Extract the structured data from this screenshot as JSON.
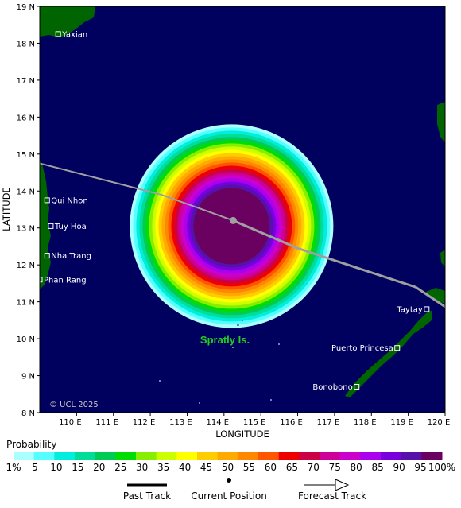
{
  "map": {
    "x_axis_label": "LONGITUDE",
    "y_axis_label": "LATITUDE",
    "lon_ticks": [
      "110 E",
      "111 E",
      "112 E",
      "113 E",
      "114 E",
      "115 E",
      "116 E",
      "117 E",
      "118 E",
      "119 E",
      "120 E"
    ],
    "lat_ticks": [
      "19 N",
      "18 N",
      "17 N",
      "16 N",
      "15 N",
      "14 N",
      "13 N",
      "12 N",
      "11 N",
      "10 N",
      "9 N",
      "8 N"
    ],
    "lon_range": [
      109,
      120
    ],
    "lat_range": [
      8,
      19
    ],
    "copyright": "© UCL 2025",
    "region_label": "Spratly Is.",
    "ocean_color": "#00005e",
    "land_color": "#006400",
    "track_color": "#a0a0a0",
    "places": [
      {
        "name": "Yaxian",
        "lon": 109.5,
        "lat": 18.25
      },
      {
        "name": "Qui Nhon",
        "lon": 109.2,
        "lat": 13.75
      },
      {
        "name": "Tuy Hoa",
        "lon": 109.3,
        "lat": 13.05
      },
      {
        "name": "Nha Trang",
        "lon": 109.2,
        "lat": 12.25
      },
      {
        "name": "Phan Rang",
        "lon": 109.0,
        "lat": 11.6
      },
      {
        "name": "Taytay",
        "lon": 119.5,
        "lat": 10.8
      },
      {
        "name": "Puerto Princesa",
        "lon": 118.7,
        "lat": 9.75
      },
      {
        "name": "Bonobono",
        "lon": 117.6,
        "lat": 8.7
      }
    ],
    "current_position": {
      "lon": 114.25,
      "lat": 13.2
    },
    "past_track": [
      [
        108.8,
        14.8
      ],
      [
        112.3,
        13.9
      ],
      [
        114.25,
        13.2
      ]
    ],
    "forecast_track": [
      [
        114.25,
        13.2
      ],
      [
        116.0,
        12.45
      ],
      [
        119.2,
        11.4
      ],
      [
        120.1,
        10.8
      ]
    ]
  },
  "legend": {
    "title": "Probability",
    "labels": [
      "1%",
      "5",
      "10",
      "15",
      "20",
      "25",
      "30",
      "35",
      "40",
      "45",
      "50",
      "55",
      "60",
      "65",
      "70",
      "75",
      "80",
      "85",
      "90",
      "95",
      "100%"
    ],
    "colors": [
      "#aaffff",
      "#55ffff",
      "#00eedd",
      "#00dd99",
      "#00cc55",
      "#00dd00",
      "#88ee00",
      "#ccff00",
      "#ffff00",
      "#ffcc00",
      "#ffaa00",
      "#ff8800",
      "#ff5500",
      "#ee0000",
      "#cc0044",
      "#cc0099",
      "#cc00cc",
      "#aa00ee",
      "#7700dd",
      "#5511aa",
      "#6a0060"
    ],
    "past_track_label": "Past Track",
    "current_position_label": "Current Position",
    "forecast_track_label": "Forecast Track"
  }
}
